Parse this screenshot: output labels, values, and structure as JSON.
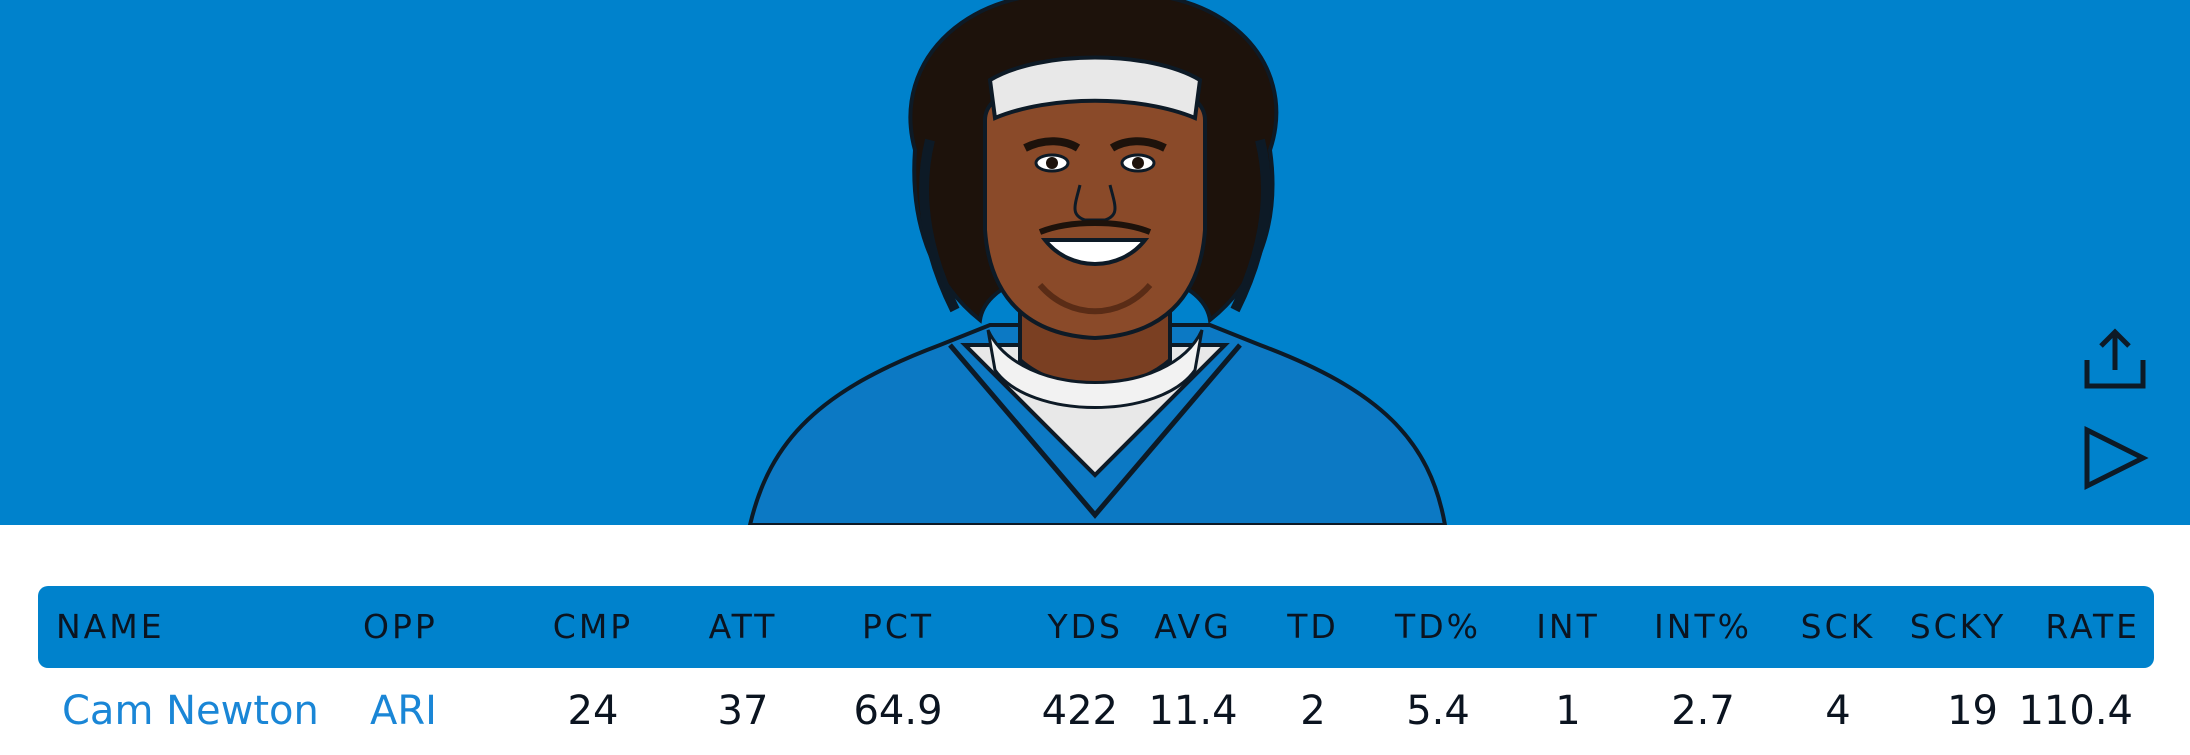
{
  "colors": {
    "hero_background": "#0082cc",
    "header_bar": "#0082cc",
    "link": "#1a86d6",
    "text": "#0b1420"
  },
  "hero": {
    "player_image_icon": "player-portrait-illustration",
    "share_icon": "share-upload-icon",
    "play_icon": "play-triangle-icon"
  },
  "table": {
    "columns": [
      "NAME",
      "OPP",
      "CMP",
      "ATT",
      "PCT",
      "YDS",
      "AVG",
      "TD",
      "TD%",
      "INT",
      "INT%",
      "SCK",
      "SCKY",
      "RATE"
    ],
    "rows": [
      [
        "Cam Newton",
        "ARI",
        "24",
        "37",
        "64.9",
        "422",
        "11.4",
        "2",
        "5.4",
        "1",
        "2.7",
        "4",
        "19",
        "110.4"
      ]
    ]
  }
}
